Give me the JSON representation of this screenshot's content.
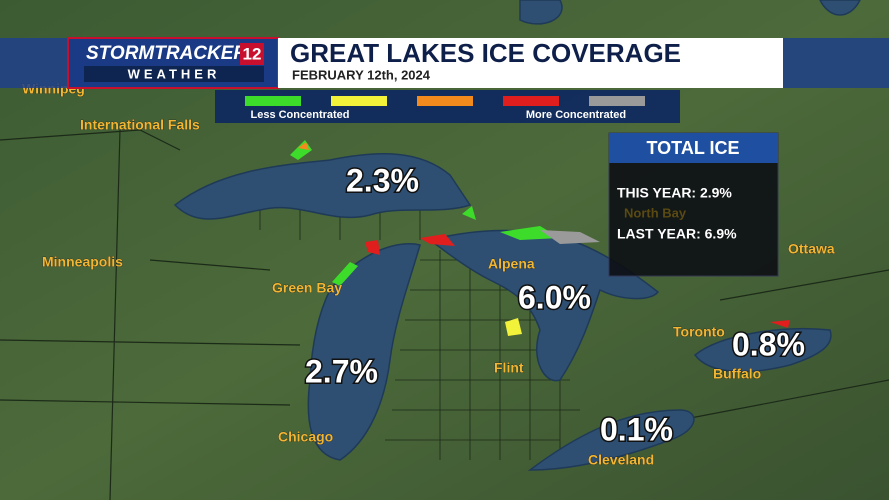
{
  "header": {
    "brand_top": "STORMTRACKER",
    "brand_num": "12",
    "brand_bottom": "WEATHER",
    "title": "GREAT LAKES ICE COVERAGE",
    "date": "FEBRUARY 12th, 2024"
  },
  "legend": {
    "colors": [
      "#3ddc2a",
      "#f2f23a",
      "#f28a1e",
      "#e01e1e",
      "#9a9a9a"
    ],
    "labels": [
      "Less Concentrated",
      "More Concentrated"
    ]
  },
  "total_ice": {
    "title": "TOTAL ICE",
    "this_year": "THIS YEAR: 2.9%",
    "background_city": "North Bay",
    "last_year": "LAST YEAR: 6.9%"
  },
  "lakes": [
    "2.3%",
    "6.0%",
    "2.7%",
    "0.8%",
    "0.1%"
  ],
  "cities": [
    "Winnipeg",
    "International Falls",
    "Minneapolis",
    "Green Bay",
    "Alpena",
    "Ottawa",
    "Toronto",
    "Flint",
    "Buffalo",
    "Chicago",
    "Cleveland"
  ]
}
